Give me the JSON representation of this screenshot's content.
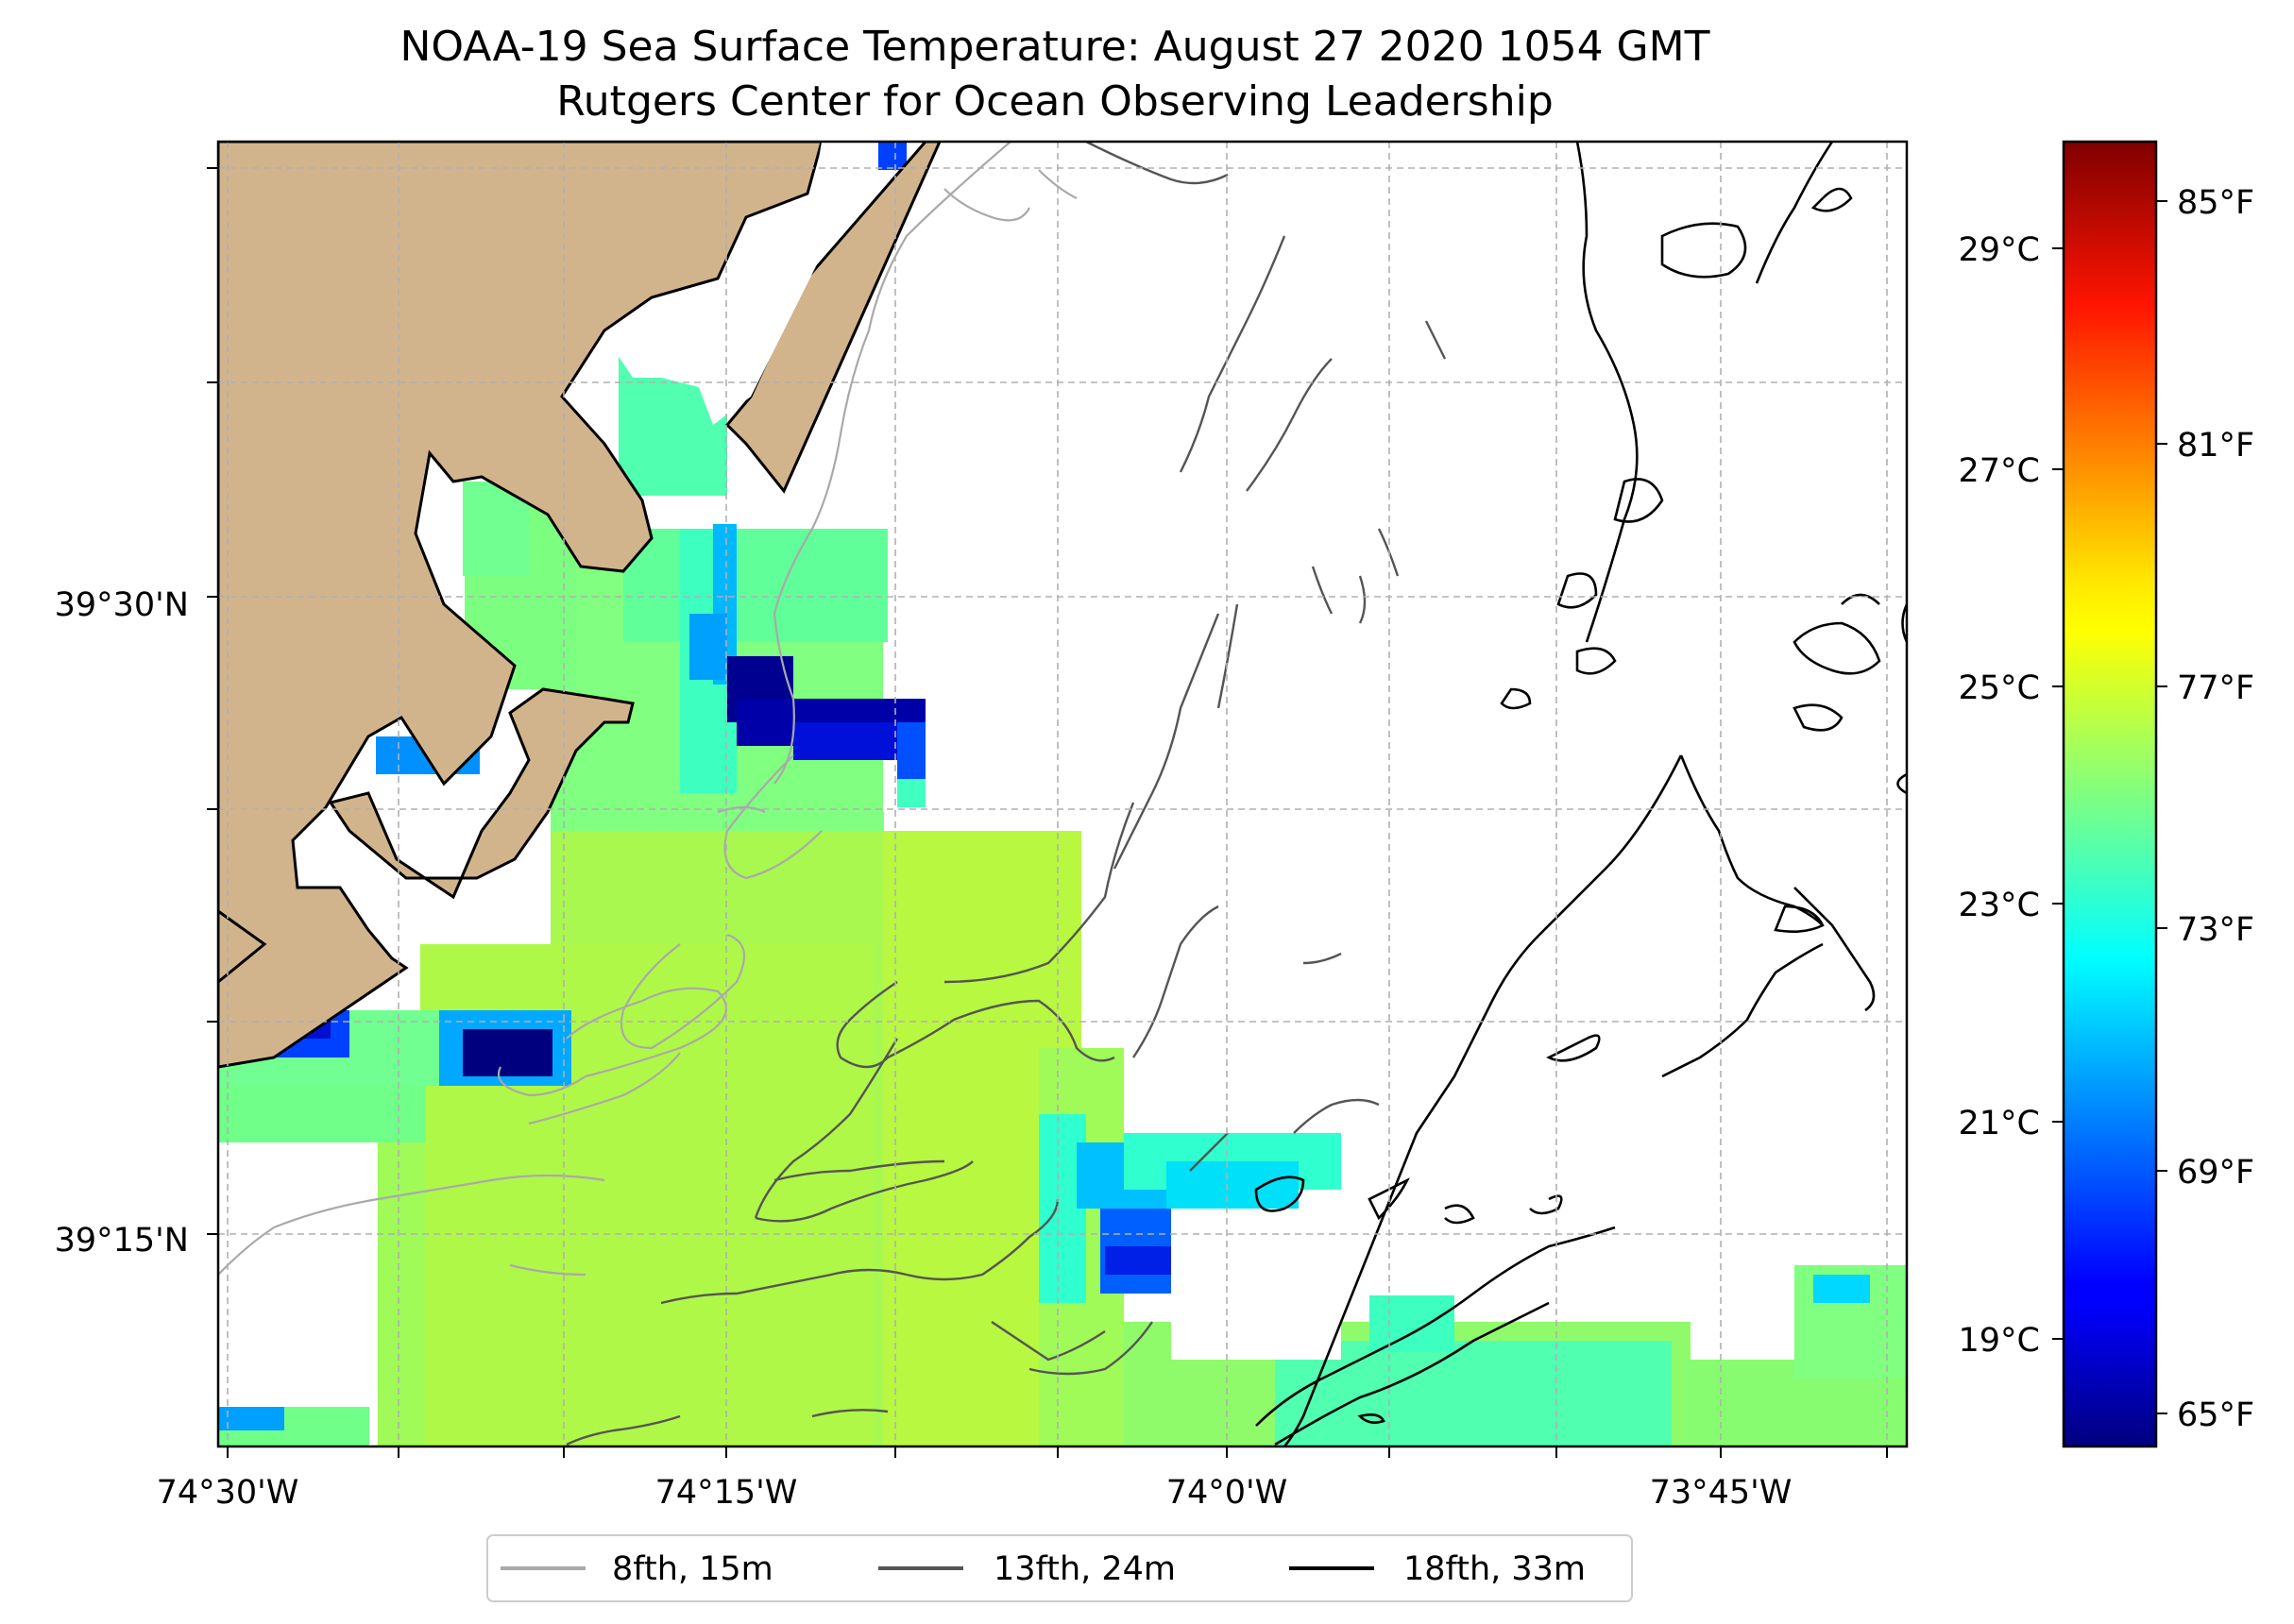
{
  "title": {
    "line1": "NOAA-19 Sea Surface Temperature: August 27 2020 1054 GMT",
    "line2": "Rutgers Center for Ocean Observing Leadership"
  },
  "colors": {
    "land": "#d2b48c",
    "coast": "#000000",
    "grid": "#b0b0b0",
    "contour_8fth": "#a9a9a9",
    "contour_13fth": "#555555",
    "contour_18fth": "#000000"
  },
  "map": {
    "x_ticks": [
      "74°30'W",
      "74°15'W",
      "74°0'W",
      "73°45'W"
    ],
    "y_ticks": [
      "39°30'N",
      "39°15'N"
    ]
  },
  "colorbar": {
    "colormap": "jet",
    "celsius_ticks": [
      "29°C",
      "27°C",
      "25°C",
      "23°C",
      "21°C",
      "19°C"
    ],
    "fahrenheit_ticks": [
      "85°F",
      "81°F",
      "77°F",
      "73°F",
      "69°F",
      "65°F"
    ]
  },
  "legend": {
    "placement": "bottom-center",
    "items": [
      {
        "label": "8fth, 15m",
        "color": "#a9a9a9"
      },
      {
        "label": "13fth, 24m",
        "color": "#555555"
      },
      {
        "label": "18fth, 33m",
        "color": "#000000"
      }
    ]
  }
}
